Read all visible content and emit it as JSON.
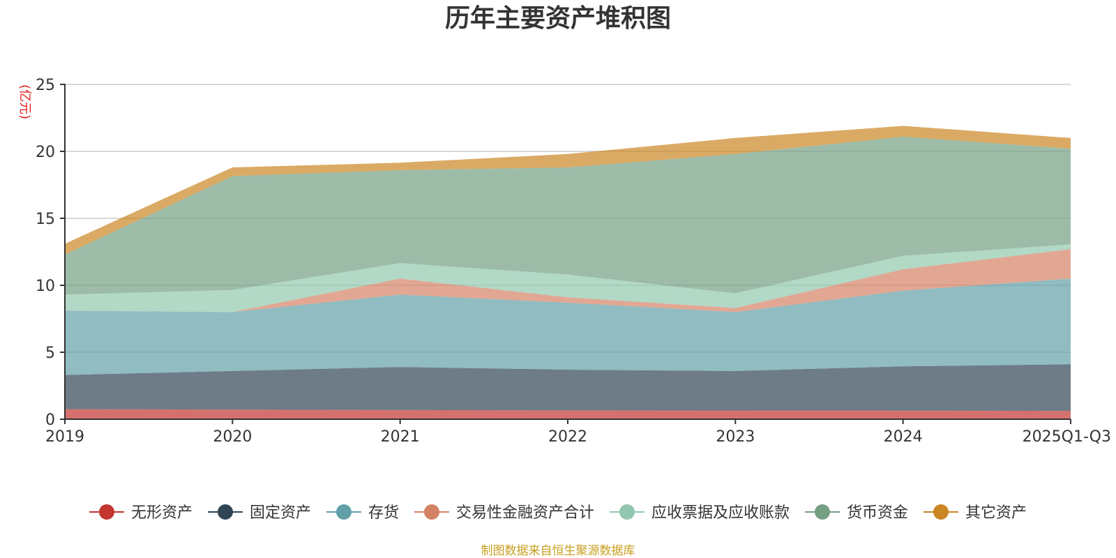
{
  "chart_data": {
    "type": "area",
    "stacked": true,
    "title": "历年主要资产堆积图",
    "ylabel": "(亿元)",
    "xlabel": "",
    "categories": [
      "2019",
      "2020",
      "2021",
      "2022",
      "2023",
      "2024",
      "2025Q1-Q3"
    ],
    "ylim": [
      0,
      25
    ],
    "yticks": [
      0,
      5,
      10,
      15,
      20,
      25
    ],
    "grid": true,
    "legend_position": "bottom",
    "series": [
      {
        "name": "无形资产",
        "color": "#c23531",
        "values": [
          0.75,
          0.72,
          0.68,
          0.66,
          0.65,
          0.64,
          0.62
        ]
      },
      {
        "name": "固定资产",
        "color": "#2f4554",
        "values": [
          2.55,
          2.88,
          3.22,
          3.04,
          2.95,
          3.31,
          3.48
        ]
      },
      {
        "name": "存货",
        "color": "#61a0a8",
        "values": [
          4.8,
          4.4,
          5.4,
          5.0,
          4.4,
          5.65,
          6.4
        ]
      },
      {
        "name": "交易性金融资产合计",
        "color": "#d48265",
        "values": [
          0.0,
          0.0,
          1.2,
          0.4,
          0.3,
          1.6,
          2.2
        ]
      },
      {
        "name": "应收票据及应收账款",
        "color": "#91c7ae",
        "values": [
          1.2,
          1.65,
          1.15,
          1.7,
          1.1,
          1.0,
          0.35
        ]
      },
      {
        "name": "货币资金",
        "color": "#749f83",
        "values": [
          3.0,
          8.5,
          6.95,
          8.0,
          10.4,
          8.9,
          7.15
        ]
      },
      {
        "name": "其它资产",
        "color": "#ca8622",
        "values": [
          0.8,
          0.65,
          0.55,
          1.0,
          1.2,
          0.8,
          0.8
        ]
      }
    ]
  },
  "footer": {
    "source": "制图数据来自恒生聚源数据库"
  },
  "colors": {
    "source_text": "#c8a020",
    "unit_text": "#e01f1f",
    "axis": "#333333",
    "grid": "#cccccc"
  }
}
